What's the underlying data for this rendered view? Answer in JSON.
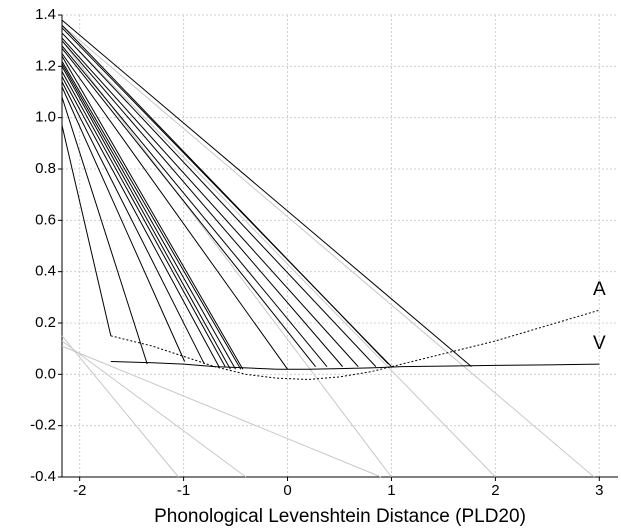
{
  "chart_data": {
    "type": "line",
    "x_label": "Phonological Levenshtein Distance (PLD20)",
    "xlim": [
      -2.17,
      3.18
    ],
    "ylim": [
      -0.4,
      1.4
    ],
    "xticks": [
      -2,
      -1,
      0,
      1,
      2,
      3
    ],
    "yticks": [
      -0.4,
      -0.2,
      {
        "value": 0,
        "label": "0.0"
      },
      0.2,
      0.4,
      0.6,
      0.8,
      {
        "value": 1,
        "label": "1.0"
      },
      1.2,
      1.4
    ],
    "grid": true,
    "series": [
      {
        "name": "A",
        "color": "#000000",
        "dash": true,
        "x": [
          -1.7,
          -1.3,
          -1.0,
          -0.7,
          -0.4,
          -0.1,
          0.2,
          0.5,
          0.8,
          1.1,
          1.5,
          2.0,
          2.5,
          3.0
        ],
        "y": [
          0.15,
          0.11,
          0.07,
          0.03,
          0.0,
          -0.015,
          -0.02,
          -0.01,
          0.01,
          0.04,
          0.08,
          0.13,
          0.19,
          0.25
        ]
      },
      {
        "name": "V",
        "color": "#000000",
        "dash": false,
        "x": [
          -1.7,
          -1.3,
          -1.0,
          -0.7,
          -0.4,
          -0.1,
          0.2,
          0.5,
          0.8,
          1.1,
          1.5,
          2.0,
          2.5,
          3.0
        ],
        "y": [
          0.05,
          0.045,
          0.04,
          0.03,
          0.025,
          0.02,
          0.02,
          0.022,
          0.025,
          0.03,
          0.032,
          0.035,
          0.037,
          0.04
        ]
      }
    ],
    "connector_color": "#000000",
    "connectors": [
      {
        "x": [
          -2.17,
          1.77
        ],
        "y": [
          1.38,
          0.03
        ]
      },
      {
        "x": [
          -2.17,
          0.97
        ],
        "y": [
          1.36,
          0.04
        ]
      },
      {
        "x": [
          -2.17,
          1.0
        ],
        "y": [
          1.35,
          0.03
        ]
      },
      {
        "x": [
          -2.17,
          0.85
        ],
        "y": [
          1.33,
          0.03
        ]
      },
      {
        "x": [
          -2.17,
          0.68
        ],
        "y": [
          1.31,
          0.03
        ]
      },
      {
        "x": [
          -2.17,
          0.53
        ],
        "y": [
          1.3,
          0.03
        ]
      },
      {
        "x": [
          -2.17,
          0.38
        ],
        "y": [
          1.28,
          0.03
        ]
      },
      {
        "x": [
          -2.17,
          0.27
        ],
        "y": [
          1.27,
          0.03
        ]
      },
      {
        "x": [
          -2.17,
          0.0
        ],
        "y": [
          1.25,
          0.02
        ]
      },
      {
        "x": [
          -2.17,
          -0.43
        ],
        "y": [
          1.24,
          0.02
        ]
      },
      {
        "x": [
          -2.17,
          -0.45
        ],
        "y": [
          1.22,
          0.02
        ]
      },
      {
        "x": [
          -2.17,
          -0.5
        ],
        "y": [
          1.21,
          0.02
        ]
      },
      {
        "x": [
          -2.17,
          -0.55
        ],
        "y": [
          1.2,
          0.02
        ]
      },
      {
        "x": [
          -2.17,
          -0.6
        ],
        "y": [
          1.18,
          0.03
        ]
      },
      {
        "x": [
          -2.17,
          -0.66
        ],
        "y": [
          1.16,
          0.03
        ]
      },
      {
        "x": [
          -2.17,
          -0.8
        ],
        "y": [
          1.14,
          0.04
        ]
      },
      {
        "x": [
          -2.17,
          -0.99
        ],
        "y": [
          1.12,
          0.05
        ]
      },
      {
        "x": [
          -2.17,
          -1.35
        ],
        "y": [
          1.08,
          0.04
        ]
      },
      {
        "x": [
          -2.17,
          -1.7
        ],
        "y": [
          0.97,
          0.15
        ]
      }
    ],
    "projection_color": "#c8c8c8",
    "projections": [
      {
        "x": [
          -2.17,
          -1.05
        ],
        "y": [
          0.15,
          -0.4
        ]
      },
      {
        "x": [
          -2.17,
          -0.4
        ],
        "y": [
          0.13,
          -0.4
        ]
      },
      {
        "x": [
          -2.17,
          0.9
        ],
        "y": [
          0.11,
          -0.4
        ]
      },
      {
        "x": [
          -2.17,
          1.0
        ],
        "y": [
          1.3,
          -0.4
        ]
      },
      {
        "x": [
          -2.17,
          2.0
        ],
        "y": [
          1.33,
          -0.4
        ]
      },
      {
        "x": [
          -2.17,
          2.95
        ],
        "y": [
          1.36,
          -0.4
        ]
      }
    ]
  }
}
